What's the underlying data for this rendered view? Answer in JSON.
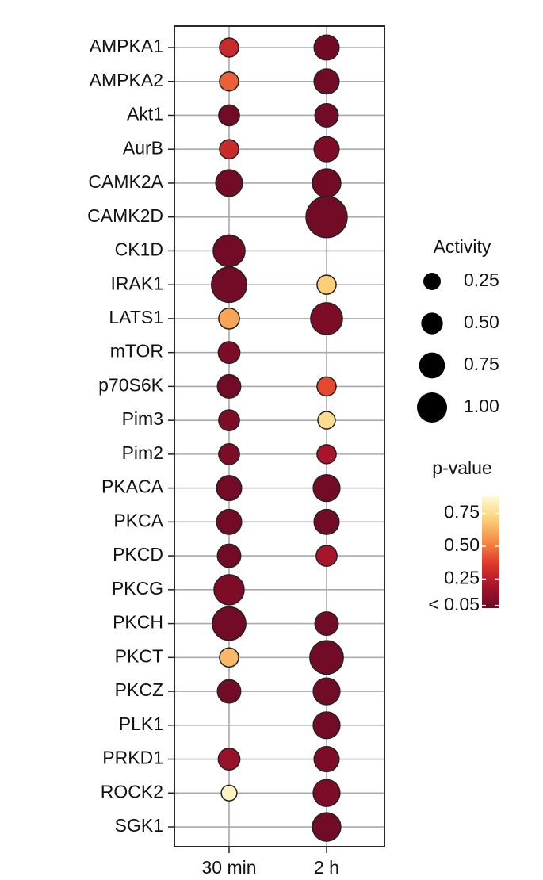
{
  "chart_data": {
    "type": "dot",
    "categories": [
      "AMPKA1",
      "AMPKA2",
      "Akt1",
      "AurB",
      "CAMK2A",
      "CAMK2D",
      "CK1D",
      "IRAK1",
      "LATS1",
      "mTOR",
      "p70S6K",
      "Pim3",
      "Pim2",
      "PKACA",
      "PKCA",
      "PKCD",
      "PKCG",
      "PKCH",
      "PKCT",
      "PKCZ",
      "PLK1",
      "PRKD1",
      "ROCK2",
      "SGK1"
    ],
    "series": [
      {
        "name": "30 min",
        "values": [
          0.35,
          0.35,
          0.45,
          0.35,
          0.8,
          null,
          1.1,
          1.3,
          0.45,
          0.5,
          0.6,
          0.45,
          0.45,
          0.7,
          0.7,
          0.6,
          1.0,
          1.2,
          0.35,
          0.6,
          null,
          0.5,
          0.15,
          null
        ],
        "pvalues": [
          0.3,
          0.45,
          0.05,
          0.3,
          0.05,
          null,
          0.05,
          0.05,
          0.6,
          0.08,
          0.05,
          0.08,
          0.08,
          0.05,
          0.05,
          0.05,
          0.08,
          0.05,
          0.65,
          0.05,
          null,
          0.15,
          0.85,
          null
        ]
      },
      {
        "name": "2 h",
        "values": [
          0.7,
          0.7,
          0.6,
          0.7,
          0.9,
          1.65,
          null,
          0.35,
          1.1,
          null,
          0.35,
          0.25,
          0.35,
          0.8,
          0.7,
          0.45,
          null,
          0.6,
          1.2,
          0.8,
          0.8,
          0.7,
          0.8,
          0.9
        ],
        "pvalues": [
          0.05,
          0.05,
          0.05,
          0.08,
          0.05,
          0.05,
          null,
          0.7,
          0.08,
          null,
          0.4,
          0.75,
          0.2,
          0.05,
          0.05,
          0.2,
          null,
          0.05,
          0.05,
          0.05,
          0.05,
          0.08,
          0.08,
          0.05
        ]
      }
    ],
    "size_legend": {
      "title": "Activity",
      "ticks": [
        {
          "value": 0.25,
          "label": "0.25"
        },
        {
          "value": 0.5,
          "label": "0.50"
        },
        {
          "value": 0.75,
          "label": "0.75"
        },
        {
          "value": 1.0,
          "label": "1.00"
        }
      ]
    },
    "colorbar": {
      "title": "p-value",
      "lim": [
        0.03,
        0.88
      ],
      "colors": [
        "#6b0a25",
        "#a8152b",
        "#e0392b",
        "#f58c44",
        "#fbd27a",
        "#fefbd2"
      ],
      "ticks": [
        {
          "value": 0.75,
          "label": "0.75"
        },
        {
          "value": 0.5,
          "label": "0.50"
        },
        {
          "value": 0.25,
          "label": "0.25"
        },
        {
          "value": 0.05,
          "label": "< 0.05"
        }
      ]
    },
    "grid": true
  }
}
